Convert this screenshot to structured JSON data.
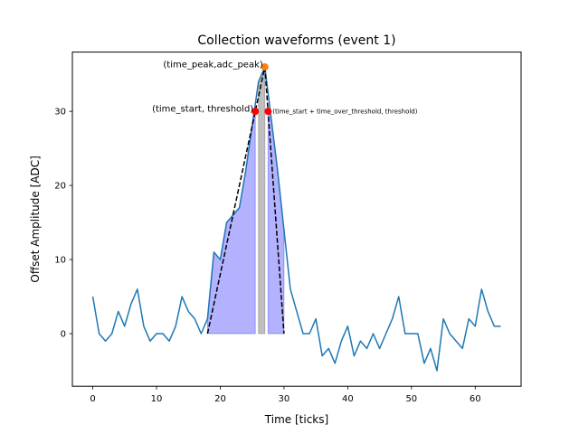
{
  "chart_data": {
    "type": "line",
    "title": "Collection waveforms (event 1)",
    "xlabel": "Time [ticks]",
    "ylabel": "Offset Amplitude [ADC]",
    "xlim": [
      -3.2,
      67.2
    ],
    "ylim": [
      -7.1,
      38.0
    ],
    "xticks": [
      0,
      10,
      20,
      30,
      40,
      50,
      60
    ],
    "yticks": [
      0,
      10,
      20,
      30
    ],
    "grid": false,
    "series": [
      {
        "color": "#1f77b4",
        "x": [
          0,
          1,
          2,
          3,
          4,
          5,
          6,
          7,
          8,
          9,
          10,
          11,
          12,
          13,
          14,
          15,
          16,
          17,
          18,
          19,
          20,
          21,
          22,
          23,
          24,
          25,
          26,
          27,
          28,
          29,
          30,
          31,
          32,
          33,
          34,
          35,
          36,
          37,
          38,
          39,
          40,
          41,
          42,
          43,
          44,
          45,
          46,
          47,
          48,
          49,
          50,
          51,
          52,
          53,
          54,
          55,
          56,
          57,
          58,
          59,
          60,
          61,
          62,
          63,
          64
        ],
        "values": [
          5,
          0,
          -1,
          0,
          3,
          1,
          4,
          6,
          1,
          -1,
          0,
          0,
          -1,
          1,
          5,
          3,
          2,
          0,
          2,
          11,
          10,
          15,
          16,
          17,
          22,
          28,
          34,
          36,
          29,
          22,
          14,
          6,
          3,
          0,
          0,
          2,
          -3,
          -2,
          -4,
          -1,
          1,
          -3,
          -1,
          -2,
          0,
          -2,
          0,
          2,
          5,
          0,
          0,
          0,
          -4,
          -2,
          -5,
          2,
          0,
          -1,
          -2,
          2,
          1,
          6,
          3,
          1,
          1
        ]
      }
    ],
    "shaded_regions": [
      {
        "color": "#0000ff",
        "opacity": 0.3,
        "x": [
          18,
          19,
          20,
          21,
          22,
          23,
          24,
          25,
          25.5
        ],
        "values": [
          2,
          11,
          10,
          15,
          16,
          17,
          22,
          28,
          30
        ]
      },
      {
        "color": "#808080",
        "opacity": 0.5,
        "x": [
          26,
          27
        ],
        "values": [
          34,
          36
        ]
      },
      {
        "color": "#0000ff",
        "opacity": 0.3,
        "x": [
          27.5,
          28,
          29,
          30
        ],
        "values": [
          30,
          29,
          22,
          14
        ]
      }
    ],
    "fit_lines": [
      {
        "x": [
          18,
          27
        ],
        "values": [
          0,
          36
        ]
      },
      {
        "x": [
          27,
          30
        ],
        "values": [
          36,
          0
        ]
      }
    ],
    "markers": [
      {
        "color": "#ff7f0e",
        "x": 27,
        "y": 36
      },
      {
        "color": "#ff0000",
        "x": 25.5,
        "y": 30
      },
      {
        "color": "#ff0000",
        "x": 27.5,
        "y": 30
      }
    ],
    "annotations": [
      {
        "text": "(time_peak,adc_peak)",
        "x": 27,
        "y": 36,
        "anchor": "end",
        "size": "normal"
      },
      {
        "text": "(time_start, threshold)",
        "x": 25.5,
        "y": 30,
        "anchor": "end",
        "size": "normal"
      },
      {
        "text": "(time_start + time_over_threshold, threshold)",
        "x": 27.5,
        "y": 30,
        "anchor": "start",
        "size": "small"
      }
    ]
  }
}
